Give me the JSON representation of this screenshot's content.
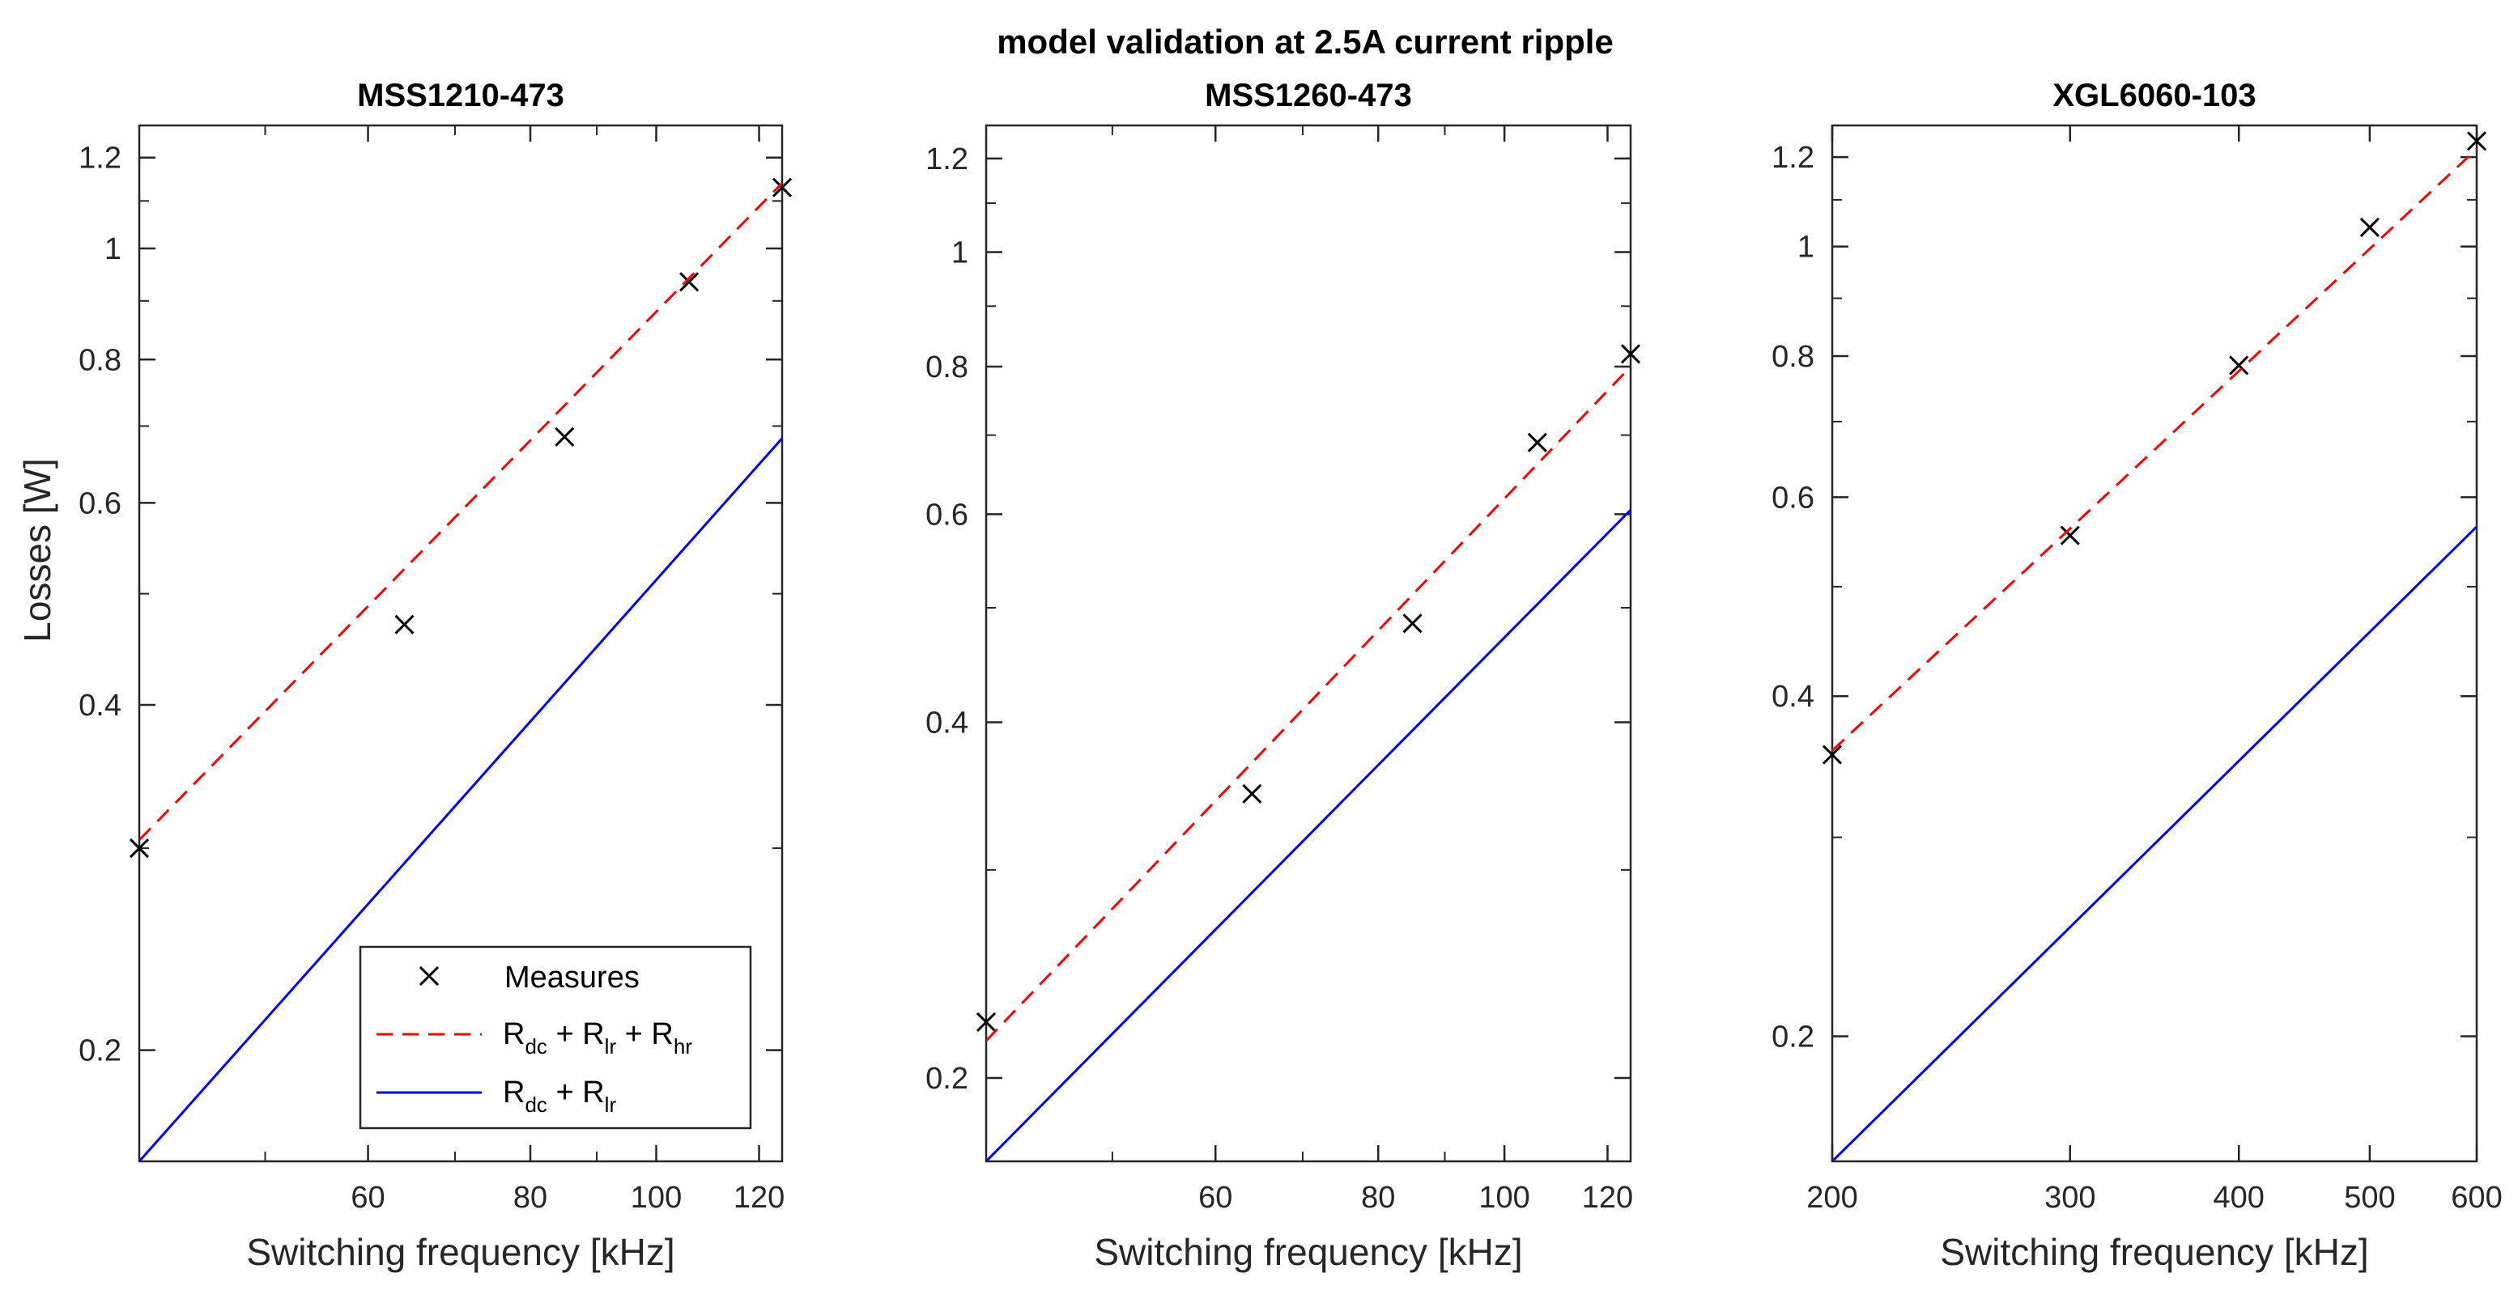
{
  "title": "model validation at 2.5A current ripple",
  "ylabel": "Losses [W]",
  "chart_data": [
    {
      "type": "line",
      "title": "MSS1210-473",
      "xlabel": "Switching frequency [kHz]",
      "ylabel": "Losses [W]",
      "xscale": "log",
      "yscale": "log",
      "xlim": [
        40,
        125
      ],
      "ylim": [
        0.16,
        1.28
      ],
      "xticks": [
        60,
        80,
        100,
        120
      ],
      "yticks": [
        0.2,
        0.4,
        0.6,
        0.8,
        1,
        1.2
      ],
      "ytick_labels": [
        "0.2",
        "0.4",
        "0.6",
        "0.8",
        "1",
        "1.2"
      ],
      "series": [
        {
          "name": "Measures",
          "style": "marker",
          "x": [
            40,
            64,
            85,
            106,
            125
          ],
          "y": [
            0.3,
            0.47,
            0.685,
            0.935,
            1.13
          ]
        },
        {
          "name": "Rdc + Rlr + Rhr",
          "style": "dashed",
          "x": [
            40,
            125
          ],
          "y": [
            0.305,
            1.14
          ]
        },
        {
          "name": "Rdc + Rlr",
          "style": "solid",
          "x": [
            40,
            125
          ],
          "y": [
            0.16,
            0.683
          ]
        }
      ]
    },
    {
      "type": "line",
      "title": "MSS1260-473",
      "xlabel": "Switching frequency [kHz]",
      "xscale": "log",
      "yscale": "log",
      "xlim": [
        40,
        125
      ],
      "ylim": [
        0.17,
        1.28
      ],
      "xticks": [
        60,
        80,
        100,
        120
      ],
      "yticks": [
        0.2,
        0.4,
        0.6,
        0.8,
        1,
        1.2
      ],
      "ytick_labels": [
        "0.2",
        "0.4",
        "0.6",
        "0.8",
        "1",
        "1.2"
      ],
      "series": [
        {
          "name": "Measures",
          "style": "marker",
          "x": [
            40,
            64,
            85,
            106,
            125
          ],
          "y": [
            0.223,
            0.348,
            0.485,
            0.69,
            0.82
          ]
        },
        {
          "name": "Rdc + Rlr + Rhr",
          "style": "dashed",
          "x": [
            40,
            125
          ],
          "y": [
            0.215,
            0.8
          ]
        },
        {
          "name": "Rdc + Rlr",
          "style": "solid",
          "x": [
            40,
            125
          ],
          "y": [
            0.17,
            0.605
          ]
        }
      ]
    },
    {
      "type": "line",
      "title": "XGL6060-103",
      "xlabel": "Switching frequency [kHz]",
      "xscale": "log",
      "yscale": "log",
      "xlim": [
        200,
        600
      ],
      "ylim": [
        0.155,
        1.28
      ],
      "xticks": [
        200,
        300,
        400,
        500,
        600
      ],
      "yticks": [
        0.2,
        0.4,
        0.6,
        0.8,
        1,
        1.2
      ],
      "ytick_labels": [
        "0.2",
        "0.4",
        "0.6",
        "0.8",
        "1",
        "1.2"
      ],
      "series": [
        {
          "name": "Measures",
          "style": "marker",
          "x": [
            200,
            300,
            400,
            500,
            600
          ],
          "y": [
            0.355,
            0.555,
            0.785,
            1.04,
            1.24
          ]
        },
        {
          "name": "Rdc + Rlr + Rhr",
          "style": "dashed",
          "x": [
            200,
            600
          ],
          "y": [
            0.358,
            1.22
          ]
        },
        {
          "name": "Rdc + Rlr",
          "style": "solid",
          "x": [
            200,
            600
          ],
          "y": [
            0.155,
            0.565
          ]
        }
      ]
    }
  ],
  "legend": {
    "entries": [
      {
        "label": "Measures"
      },
      {
        "base": "R",
        "sub1": "dc",
        "plus1": " + R",
        "sub2": "lr",
        "plus2": " + R",
        "sub3": "hr"
      },
      {
        "base": "R",
        "sub1": "dc",
        "plus1": " + R",
        "sub2": "lr"
      }
    ]
  },
  "colors": {
    "dashed": "#ff0000",
    "solid": "#0000ff",
    "marker": "#000000",
    "axis": "#262626"
  }
}
